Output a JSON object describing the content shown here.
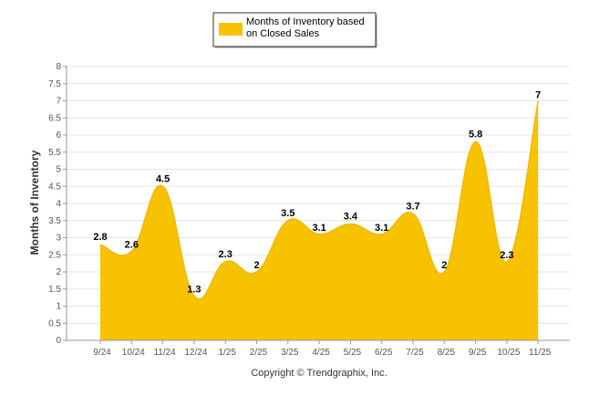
{
  "chart_data": {
    "type": "area",
    "title": "",
    "xlabel": "",
    "ylabel": "Months of Inventory",
    "categories": [
      "9/24",
      "10/24",
      "11/24",
      "12/24",
      "1/25",
      "2/25",
      "3/25",
      "4/25",
      "5/25",
      "6/25",
      "7/25",
      "8/25",
      "9/25",
      "10/25",
      "11/25"
    ],
    "series": [
      {
        "name": "Months of Inventory based on Closed Sales",
        "values": [
          2.8,
          2.6,
          4.5,
          1.3,
          2.3,
          2,
          3.5,
          3.1,
          3.4,
          3.1,
          3.7,
          2,
          5.8,
          2.3,
          7
        ],
        "color": "#f7c200"
      }
    ],
    "data_labels": [
      "2.8",
      "2.6",
      "4.5",
      "1.3",
      "2.3",
      "2",
      "3.5",
      "3.1",
      "3.4",
      "3.1",
      "3.7",
      "2",
      "5.8",
      "2.3",
      "7"
    ],
    "y_ticks": [
      "0",
      "0.5",
      "1",
      "1.5",
      "2",
      "2.5",
      "3",
      "3.5",
      "4",
      "4.5",
      "5",
      "5.5",
      "6",
      "6.5",
      "7",
      "7.5",
      "8"
    ],
    "ylim": [
      0,
      8
    ],
    "grid": true,
    "legend": {
      "position": "top-center",
      "line1": "Months of Inventory based",
      "line2": "on Closed Sales"
    },
    "copyright": "Copyright © Trendgraphix, Inc."
  }
}
